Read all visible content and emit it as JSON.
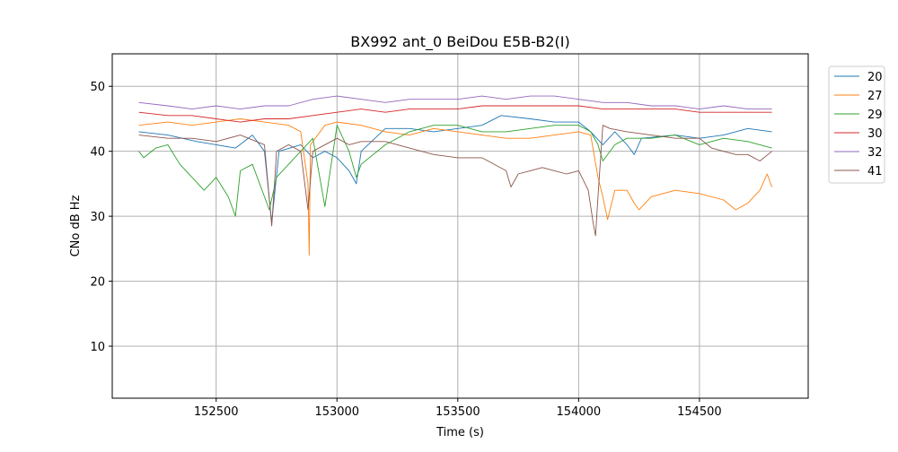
{
  "chart_data": {
    "type": "line",
    "title": "BX992 ant_0 BeiDou E5B-B2(I)",
    "xlabel": "Time (s)",
    "ylabel": "CNo dB Hz",
    "xlim": [
      152070,
      154950
    ],
    "ylim": [
      2,
      55
    ],
    "xticks": [
      152500,
      153000,
      153500,
      154000,
      154500
    ],
    "yticks": [
      10,
      20,
      30,
      40,
      50
    ],
    "grid": true,
    "legend_position": "outside-right-top",
    "series": [
      {
        "name": "20",
        "color": "#1f77b4",
        "points": [
          [
            152180,
            43
          ],
          [
            152300,
            42.5
          ],
          [
            152420,
            41.5
          ],
          [
            152500,
            41
          ],
          [
            152580,
            40.5
          ],
          [
            152650,
            42.5
          ],
          [
            152700,
            40
          ],
          [
            152730,
            29
          ],
          [
            152760,
            40
          ],
          [
            152850,
            41
          ],
          [
            152900,
            39
          ],
          [
            152950,
            40
          ],
          [
            153000,
            39
          ],
          [
            153050,
            37
          ],
          [
            153080,
            35
          ],
          [
            153100,
            40
          ],
          [
            153200,
            43.5
          ],
          [
            153300,
            43.5
          ],
          [
            153400,
            43
          ],
          [
            153500,
            43.5
          ],
          [
            153600,
            44
          ],
          [
            153680,
            45.5
          ],
          [
            153800,
            45
          ],
          [
            153900,
            44.5
          ],
          [
            154000,
            44.5
          ],
          [
            154050,
            43
          ],
          [
            154100,
            41
          ],
          [
            154150,
            43
          ],
          [
            154200,
            41
          ],
          [
            154230,
            39.5
          ],
          [
            154260,
            42
          ],
          [
            154400,
            42.5
          ],
          [
            154500,
            42
          ],
          [
            154600,
            42.5
          ],
          [
            154700,
            43.5
          ],
          [
            154800,
            43
          ]
        ]
      },
      {
        "name": "27",
        "color": "#ff7f0e",
        "points": [
          [
            152180,
            44
          ],
          [
            152300,
            44.5
          ],
          [
            152400,
            44
          ],
          [
            152500,
            44.5
          ],
          [
            152600,
            45
          ],
          [
            152700,
            44.5
          ],
          [
            152800,
            44
          ],
          [
            152850,
            43
          ],
          [
            152880,
            35
          ],
          [
            152885,
            24
          ],
          [
            152890,
            41
          ],
          [
            152950,
            44
          ],
          [
            153000,
            44.5
          ],
          [
            153100,
            44
          ],
          [
            153200,
            43
          ],
          [
            153300,
            42.5
          ],
          [
            153400,
            43.5
          ],
          [
            153500,
            43
          ],
          [
            153600,
            42.5
          ],
          [
            153700,
            42
          ],
          [
            153800,
            42
          ],
          [
            153900,
            42.5
          ],
          [
            154000,
            43
          ],
          [
            154050,
            42.5
          ],
          [
            154080,
            36
          ],
          [
            154100,
            33
          ],
          [
            154120,
            29.5
          ],
          [
            154150,
            34
          ],
          [
            154200,
            34
          ],
          [
            154230,
            32
          ],
          [
            154250,
            31
          ],
          [
            154300,
            33
          ],
          [
            154400,
            34
          ],
          [
            154500,
            33.5
          ],
          [
            154600,
            32.5
          ],
          [
            154650,
            31
          ],
          [
            154700,
            32
          ],
          [
            154750,
            34
          ],
          [
            154780,
            36.5
          ],
          [
            154800,
            34.5
          ]
        ]
      },
      {
        "name": "29",
        "color": "#2ca02c",
        "points": [
          [
            152180,
            40
          ],
          [
            152200,
            39
          ],
          [
            152250,
            40.5
          ],
          [
            152300,
            41
          ],
          [
            152350,
            38
          ],
          [
            152400,
            36
          ],
          [
            152450,
            34
          ],
          [
            152500,
            36
          ],
          [
            152550,
            33
          ],
          [
            152580,
            30
          ],
          [
            152600,
            37
          ],
          [
            152650,
            38
          ],
          [
            152700,
            33
          ],
          [
            152720,
            31
          ],
          [
            152750,
            36
          ],
          [
            152800,
            38
          ],
          [
            152850,
            40
          ],
          [
            152900,
            42
          ],
          [
            152950,
            31.5
          ],
          [
            153000,
            44
          ],
          [
            153050,
            40
          ],
          [
            153080,
            36
          ],
          [
            153100,
            38
          ],
          [
            153200,
            41
          ],
          [
            153300,
            43
          ],
          [
            153400,
            44
          ],
          [
            153500,
            44
          ],
          [
            153600,
            43
          ],
          [
            153700,
            43
          ],
          [
            153800,
            43.5
          ],
          [
            153900,
            44
          ],
          [
            154000,
            44
          ],
          [
            154050,
            43
          ],
          [
            154080,
            41
          ],
          [
            154100,
            38.5
          ],
          [
            154150,
            41
          ],
          [
            154200,
            42
          ],
          [
            154300,
            42
          ],
          [
            154400,
            42.5
          ],
          [
            154500,
            41
          ],
          [
            154600,
            42
          ],
          [
            154700,
            41.5
          ],
          [
            154800,
            40.5
          ]
        ]
      },
      {
        "name": "30",
        "color": "#d62728",
        "points": [
          [
            152180,
            46
          ],
          [
            152300,
            45.5
          ],
          [
            152400,
            45.5
          ],
          [
            152500,
            45
          ],
          [
            152600,
            44.5
          ],
          [
            152700,
            45
          ],
          [
            152800,
            45
          ],
          [
            152900,
            45.5
          ],
          [
            153000,
            46
          ],
          [
            153100,
            46.5
          ],
          [
            153200,
            46
          ],
          [
            153300,
            46.5
          ],
          [
            153400,
            46.5
          ],
          [
            153500,
            46.5
          ],
          [
            153600,
            47
          ],
          [
            153700,
            47
          ],
          [
            153800,
            47
          ],
          [
            153900,
            47
          ],
          [
            154000,
            47
          ],
          [
            154100,
            46.5
          ],
          [
            154200,
            46.5
          ],
          [
            154300,
            46.5
          ],
          [
            154400,
            46.5
          ],
          [
            154500,
            46
          ],
          [
            154600,
            46
          ],
          [
            154700,
            46
          ],
          [
            154800,
            46
          ]
        ]
      },
      {
        "name": "32",
        "color": "#9467bd",
        "points": [
          [
            152180,
            47.5
          ],
          [
            152300,
            47
          ],
          [
            152400,
            46.5
          ],
          [
            152500,
            47
          ],
          [
            152600,
            46.5
          ],
          [
            152700,
            47
          ],
          [
            152800,
            47
          ],
          [
            152900,
            48
          ],
          [
            153000,
            48.5
          ],
          [
            153100,
            48
          ],
          [
            153200,
            47.5
          ],
          [
            153300,
            48
          ],
          [
            153400,
            48
          ],
          [
            153500,
            48
          ],
          [
            153600,
            48.5
          ],
          [
            153700,
            48
          ],
          [
            153800,
            48.5
          ],
          [
            153900,
            48.5
          ],
          [
            154000,
            48
          ],
          [
            154100,
            47.5
          ],
          [
            154200,
            47.5
          ],
          [
            154300,
            47
          ],
          [
            154400,
            47
          ],
          [
            154500,
            46.5
          ],
          [
            154600,
            47
          ],
          [
            154700,
            46.5
          ],
          [
            154800,
            46.5
          ]
        ]
      },
      {
        "name": "41",
        "color": "#8c564b",
        "points": [
          [
            152180,
            42.5
          ],
          [
            152300,
            42
          ],
          [
            152400,
            42
          ],
          [
            152500,
            41.5
          ],
          [
            152600,
            42.5
          ],
          [
            152700,
            41
          ],
          [
            152730,
            28.5
          ],
          [
            152750,
            40
          ],
          [
            152800,
            41
          ],
          [
            152850,
            40
          ],
          [
            152880,
            31
          ],
          [
            152900,
            40
          ],
          [
            153000,
            42
          ],
          [
            153050,
            41
          ],
          [
            153100,
            41.5
          ],
          [
            153200,
            41.5
          ],
          [
            153300,
            40.5
          ],
          [
            153400,
            39.5
          ],
          [
            153500,
            39
          ],
          [
            153600,
            39
          ],
          [
            153700,
            37
          ],
          [
            153720,
            34.5
          ],
          [
            153750,
            36.5
          ],
          [
            153800,
            37
          ],
          [
            153850,
            37.5
          ],
          [
            153900,
            37
          ],
          [
            153950,
            36.5
          ],
          [
            154000,
            37
          ],
          [
            154040,
            34
          ],
          [
            154060,
            29
          ],
          [
            154070,
            27
          ],
          [
            154080,
            33
          ],
          [
            154100,
            44
          ],
          [
            154130,
            43.5
          ],
          [
            154200,
            43
          ],
          [
            154300,
            42.5
          ],
          [
            154400,
            42
          ],
          [
            154500,
            42
          ],
          [
            154550,
            40.5
          ],
          [
            154600,
            40
          ],
          [
            154650,
            39.5
          ],
          [
            154700,
            39.5
          ],
          [
            154750,
            38.5
          ],
          [
            154800,
            40
          ]
        ]
      }
    ]
  }
}
